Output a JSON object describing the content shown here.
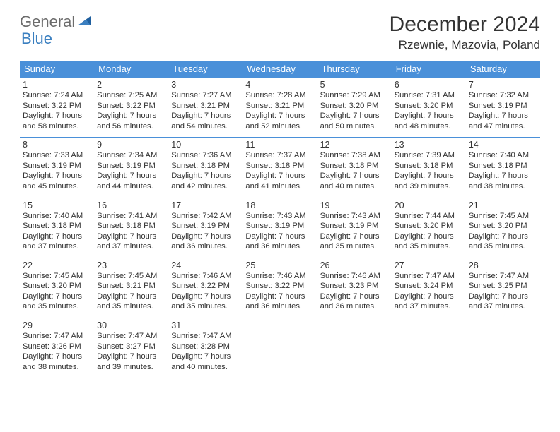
{
  "logo": {
    "text1": "General",
    "text2": "Blue"
  },
  "title": "December 2024",
  "location": "Rzewnie, Mazovia, Poland",
  "colors": {
    "header_bg": "#4a90d9",
    "header_text": "#ffffff",
    "row_border": "#4a90d9",
    "logo_gray": "#6c6c6c",
    "logo_blue": "#3a7fc0",
    "body_text": "#333333",
    "page_bg": "#ffffff"
  },
  "day_names": [
    "Sunday",
    "Monday",
    "Tuesday",
    "Wednesday",
    "Thursday",
    "Friday",
    "Saturday"
  ],
  "weeks": [
    [
      {
        "d": "1",
        "rise": "7:24 AM",
        "set": "3:22 PM",
        "dl": "7 hours and 58 minutes."
      },
      {
        "d": "2",
        "rise": "7:25 AM",
        "set": "3:22 PM",
        "dl": "7 hours and 56 minutes."
      },
      {
        "d": "3",
        "rise": "7:27 AM",
        "set": "3:21 PM",
        "dl": "7 hours and 54 minutes."
      },
      {
        "d": "4",
        "rise": "7:28 AM",
        "set": "3:21 PM",
        "dl": "7 hours and 52 minutes."
      },
      {
        "d": "5",
        "rise": "7:29 AM",
        "set": "3:20 PM",
        "dl": "7 hours and 50 minutes."
      },
      {
        "d": "6",
        "rise": "7:31 AM",
        "set": "3:20 PM",
        "dl": "7 hours and 48 minutes."
      },
      {
        "d": "7",
        "rise": "7:32 AM",
        "set": "3:19 PM",
        "dl": "7 hours and 47 minutes."
      }
    ],
    [
      {
        "d": "8",
        "rise": "7:33 AM",
        "set": "3:19 PM",
        "dl": "7 hours and 45 minutes."
      },
      {
        "d": "9",
        "rise": "7:34 AM",
        "set": "3:19 PM",
        "dl": "7 hours and 44 minutes."
      },
      {
        "d": "10",
        "rise": "7:36 AM",
        "set": "3:18 PM",
        "dl": "7 hours and 42 minutes."
      },
      {
        "d": "11",
        "rise": "7:37 AM",
        "set": "3:18 PM",
        "dl": "7 hours and 41 minutes."
      },
      {
        "d": "12",
        "rise": "7:38 AM",
        "set": "3:18 PM",
        "dl": "7 hours and 40 minutes."
      },
      {
        "d": "13",
        "rise": "7:39 AM",
        "set": "3:18 PM",
        "dl": "7 hours and 39 minutes."
      },
      {
        "d": "14",
        "rise": "7:40 AM",
        "set": "3:18 PM",
        "dl": "7 hours and 38 minutes."
      }
    ],
    [
      {
        "d": "15",
        "rise": "7:40 AM",
        "set": "3:18 PM",
        "dl": "7 hours and 37 minutes."
      },
      {
        "d": "16",
        "rise": "7:41 AM",
        "set": "3:18 PM",
        "dl": "7 hours and 37 minutes."
      },
      {
        "d": "17",
        "rise": "7:42 AM",
        "set": "3:19 PM",
        "dl": "7 hours and 36 minutes."
      },
      {
        "d": "18",
        "rise": "7:43 AM",
        "set": "3:19 PM",
        "dl": "7 hours and 36 minutes."
      },
      {
        "d": "19",
        "rise": "7:43 AM",
        "set": "3:19 PM",
        "dl": "7 hours and 35 minutes."
      },
      {
        "d": "20",
        "rise": "7:44 AM",
        "set": "3:20 PM",
        "dl": "7 hours and 35 minutes."
      },
      {
        "d": "21",
        "rise": "7:45 AM",
        "set": "3:20 PM",
        "dl": "7 hours and 35 minutes."
      }
    ],
    [
      {
        "d": "22",
        "rise": "7:45 AM",
        "set": "3:20 PM",
        "dl": "7 hours and 35 minutes."
      },
      {
        "d": "23",
        "rise": "7:45 AM",
        "set": "3:21 PM",
        "dl": "7 hours and 35 minutes."
      },
      {
        "d": "24",
        "rise": "7:46 AM",
        "set": "3:22 PM",
        "dl": "7 hours and 35 minutes."
      },
      {
        "d": "25",
        "rise": "7:46 AM",
        "set": "3:22 PM",
        "dl": "7 hours and 36 minutes."
      },
      {
        "d": "26",
        "rise": "7:46 AM",
        "set": "3:23 PM",
        "dl": "7 hours and 36 minutes."
      },
      {
        "d": "27",
        "rise": "7:47 AM",
        "set": "3:24 PM",
        "dl": "7 hours and 37 minutes."
      },
      {
        "d": "28",
        "rise": "7:47 AM",
        "set": "3:25 PM",
        "dl": "7 hours and 37 minutes."
      }
    ],
    [
      {
        "d": "29",
        "rise": "7:47 AM",
        "set": "3:26 PM",
        "dl": "7 hours and 38 minutes."
      },
      {
        "d": "30",
        "rise": "7:47 AM",
        "set": "3:27 PM",
        "dl": "7 hours and 39 minutes."
      },
      {
        "d": "31",
        "rise": "7:47 AM",
        "set": "3:28 PM",
        "dl": "7 hours and 40 minutes."
      },
      null,
      null,
      null,
      null
    ]
  ],
  "labels": {
    "sunrise": "Sunrise: ",
    "sunset": "Sunset: ",
    "daylight": "Daylight: "
  }
}
